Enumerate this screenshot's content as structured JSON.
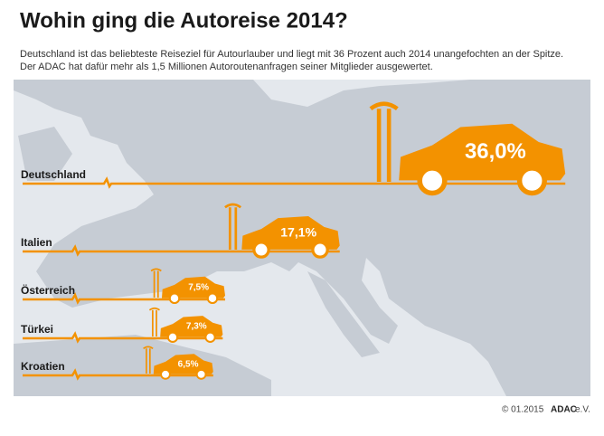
{
  "chart_data": {
    "type": "bar",
    "orientation": "horizontal",
    "title": "Wohin ging die Autoreise 2014?",
    "subtitle": [
      "Deutschland ist das beliebteste Reiseziel für Autourlauber und liegt mit 36 Prozent auch 2014 unangefochten an der Spitze.",
      "Der ADAC hat dafür mehr als 1,5 Millionen Autoroutenanfragen seiner Mitglieder ausgewertet."
    ],
    "categories": [
      "Deutschland",
      "Italien",
      "Österreich",
      "Türkei",
      "Kroatien"
    ],
    "values": [
      36.0,
      17.1,
      7.5,
      7.3,
      6.5
    ],
    "value_labels": [
      "36,0%",
      "17,1%",
      "7,5%",
      "7,3%",
      "6,5%"
    ],
    "color": "#f39200",
    "footer": [
      "© 01.2015",
      "ADAC",
      "e.V."
    ]
  }
}
